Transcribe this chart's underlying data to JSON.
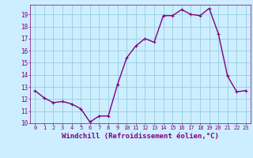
{
  "x": [
    0,
    1,
    2,
    3,
    4,
    5,
    6,
    7,
    8,
    9,
    10,
    11,
    12,
    13,
    14,
    15,
    16,
    17,
    18,
    19,
    20,
    21,
    22,
    23
  ],
  "y": [
    12.7,
    12.1,
    11.7,
    11.8,
    11.6,
    11.2,
    10.1,
    10.6,
    10.6,
    13.2,
    15.4,
    16.4,
    17.0,
    16.7,
    18.9,
    18.9,
    19.4,
    19.0,
    18.9,
    19.5,
    17.4,
    13.9,
    12.6,
    12.7
  ],
  "line_color": "#800080",
  "marker": "+",
  "marker_size": 3,
  "xlabel": "Windchill (Refroidissement éolien,°C)",
  "xlabel_fontsize": 6.5,
  "ylim": [
    10,
    19.8
  ],
  "xlim": [
    -0.5,
    23.5
  ],
  "yticks": [
    10,
    11,
    12,
    13,
    14,
    15,
    16,
    17,
    18,
    19
  ],
  "xticks": [
    0,
    1,
    2,
    3,
    4,
    5,
    6,
    7,
    8,
    9,
    10,
    11,
    12,
    13,
    14,
    15,
    16,
    17,
    18,
    19,
    20,
    21,
    22,
    23
  ],
  "background_color": "#cceeff",
  "grid_color": "#99ccdd",
  "tick_color": "#800080",
  "label_color": "#800080",
  "line_width": 1.0
}
